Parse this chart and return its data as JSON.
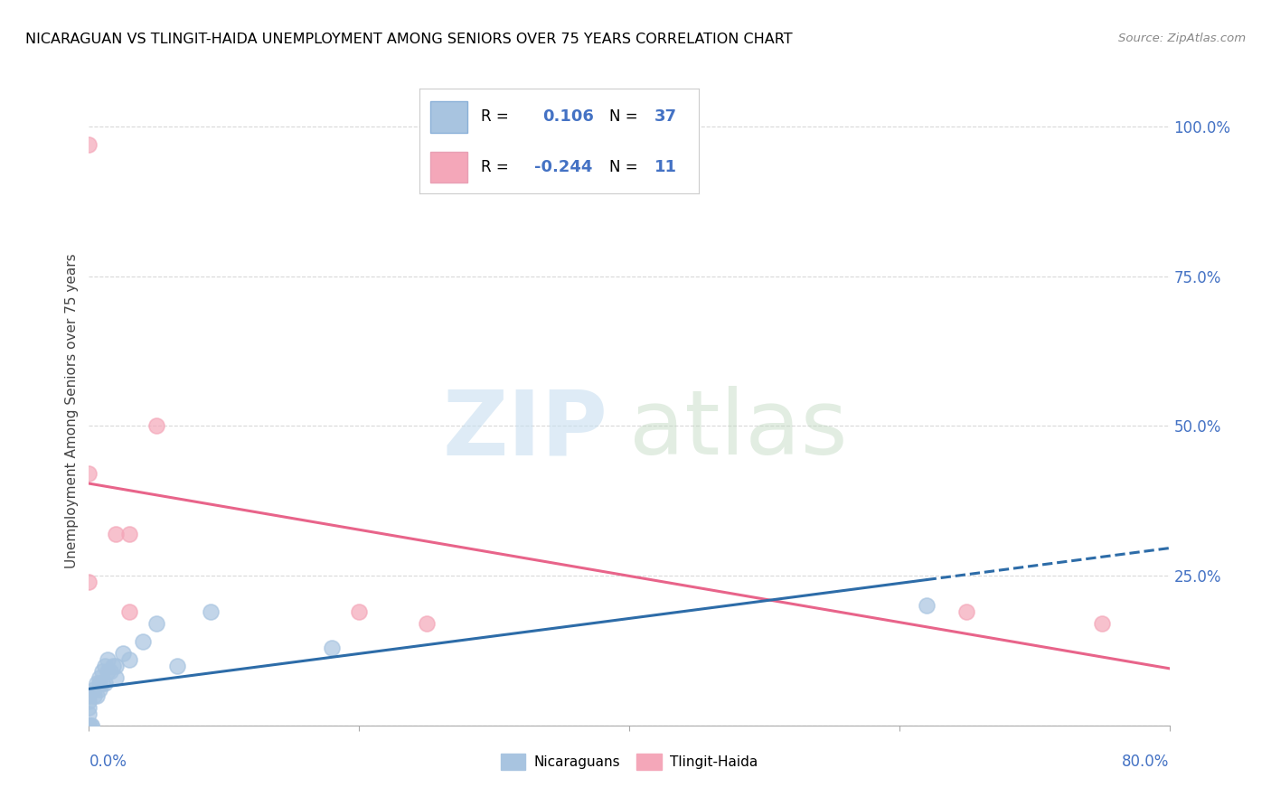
{
  "title": "NICARAGUAN VS TLINGIT-HAIDA UNEMPLOYMENT AMONG SENIORS OVER 75 YEARS CORRELATION CHART",
  "source": "Source: ZipAtlas.com",
  "ylabel": "Unemployment Among Seniors over 75 years",
  "xlim": [
    0.0,
    0.8
  ],
  "ylim": [
    0.0,
    1.05
  ],
  "yticks": [
    0.0,
    0.25,
    0.5,
    0.75,
    1.0
  ],
  "ytick_labels": [
    "",
    "25.0%",
    "50.0%",
    "75.0%",
    "100.0%"
  ],
  "xticks": [
    0.0,
    0.2,
    0.4,
    0.6,
    0.8
  ],
  "nicaraguan_color": "#a8c4e0",
  "tlingit_color": "#f4a7b9",
  "nicaraguan_line_color": "#2d6ca8",
  "tlingit_line_color": "#e8648a",
  "R_nicaraguan": 0.106,
  "N_nicaraguan": 37,
  "R_tlingit": -0.244,
  "N_tlingit": 11,
  "nicaraguan_x": [
    0.0,
    0.0,
    0.0,
    0.0,
    0.0,
    0.0,
    0.0,
    0.0,
    0.0,
    0.0,
    0.002,
    0.002,
    0.004,
    0.004,
    0.006,
    0.006,
    0.008,
    0.008,
    0.008,
    0.01,
    0.01,
    0.012,
    0.012,
    0.014,
    0.014,
    0.016,
    0.018,
    0.02,
    0.02,
    0.025,
    0.03,
    0.04,
    0.05,
    0.065,
    0.09,
    0.18,
    0.62
  ],
  "nicaraguan_y": [
    0.0,
    0.0,
    0.0,
    0.0,
    0.0,
    0.0,
    0.02,
    0.03,
    0.04,
    0.05,
    0.0,
    0.0,
    0.05,
    0.06,
    0.05,
    0.07,
    0.06,
    0.07,
    0.08,
    0.07,
    0.09,
    0.07,
    0.1,
    0.09,
    0.11,
    0.09,
    0.1,
    0.08,
    0.1,
    0.12,
    0.11,
    0.14,
    0.17,
    0.1,
    0.19,
    0.13,
    0.2
  ],
  "tlingit_x": [
    0.0,
    0.0,
    0.0,
    0.02,
    0.03,
    0.03,
    0.05,
    0.2,
    0.25,
    0.65,
    0.75
  ],
  "tlingit_y": [
    0.97,
    0.42,
    0.24,
    0.32,
    0.32,
    0.19,
    0.5,
    0.19,
    0.17,
    0.19,
    0.17
  ],
  "background_color": "#ffffff",
  "grid_color": "#d0d0d0"
}
